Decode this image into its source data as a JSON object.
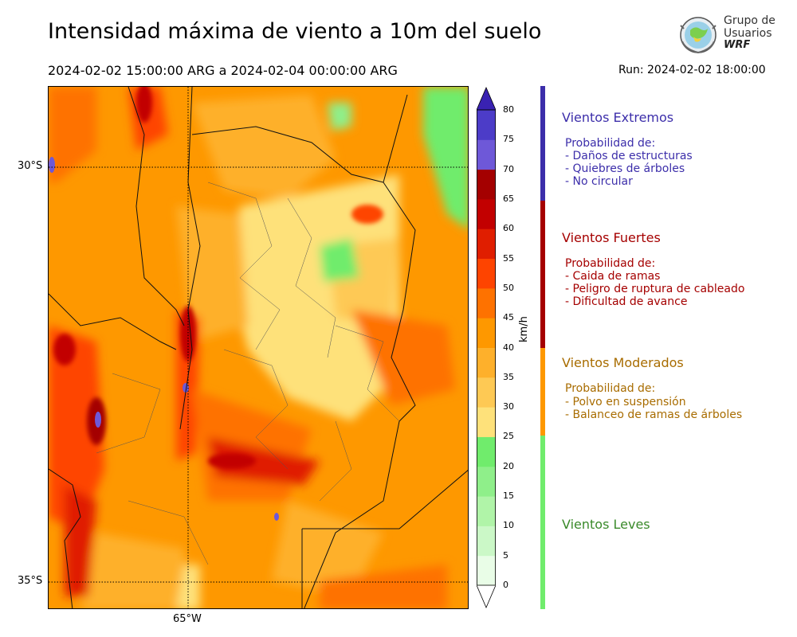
{
  "header": {
    "title": "Intensidad máxima de viento a 10m del suelo",
    "date_range": "2024-02-02 15:00:00 ARG  a  2024-02-04 00:00:00 ARG",
    "run": "Run: 2024-02-02 18:00:00"
  },
  "logo": {
    "line1": "Grupo de",
    "line2": "Usuarios",
    "line3": "WRF"
  },
  "map": {
    "lat_labels": [
      "30°S",
      "35°S"
    ],
    "lon_labels": [
      "65°W"
    ]
  },
  "colorbar": {
    "unit": "km/h",
    "ticks": [
      "0",
      "5",
      "10",
      "15",
      "20",
      "25",
      "30",
      "35",
      "40",
      "45",
      "50",
      "55",
      "60",
      "65",
      "70",
      "75",
      "80"
    ],
    "colors": [
      "#e9fde7",
      "#cbf8c7",
      "#b0f4a8",
      "#8fef8a",
      "#70ec6c",
      "#fee17a",
      "#fec954",
      "#feb02b",
      "#fe9800",
      "#fe7200",
      "#fe4400",
      "#e01e00",
      "#c20000",
      "#a40000",
      "#6e58d8",
      "#4c3cc8",
      "#3922b2"
    ]
  },
  "legend": [
    {
      "title": "Vientos Extremos",
      "color": "#3c2eaa",
      "lines": [
        "Probabilidad de:",
        "- Daños de estructuras",
        "- Quiebres de árboles",
        "- No circular"
      ]
    },
    {
      "title": "Vientos Fuertes",
      "color": "#a50000",
      "lines": [
        "Probabilidad de:",
        "- Caida de ramas",
        "- Peligro de ruptura de cableado",
        "- Dificultad de avance"
      ]
    },
    {
      "title": "Vientos Moderados",
      "color": "#a86c00",
      "lines": [
        "Probabilidad de:",
        "- Polvo en suspensión",
        "- Balanceo de ramas de árboles"
      ]
    },
    {
      "title": "Vientos Leves",
      "color": "#3a8a2a",
      "lines": []
    }
  ],
  "legend_bar_colors": [
    "#3c2eaa",
    "#a50000",
    "#fe9800",
    "#70ec6c"
  ]
}
